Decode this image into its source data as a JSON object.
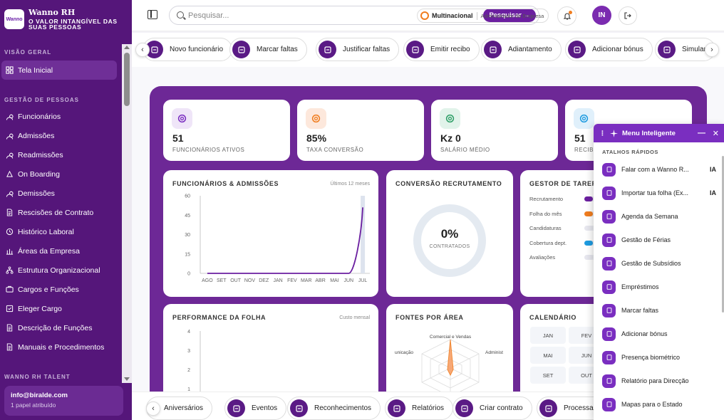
{
  "brand": {
    "name": "Wanno RH",
    "tagline": "O VALOR INTANGÍVEL DAS SUAS PESSOAS",
    "logo_text": "Wanno"
  },
  "sidebar": {
    "section_overview": "VISÃO GERAL",
    "home": "Tela Inicial",
    "section_people": "GESTÃO DE PESSOAS",
    "items": [
      "Funcionários",
      "Admissões",
      "Readmissões",
      "On Boarding",
      "Demissões",
      "Rescisões de Contrato",
      "Histórico Laboral",
      "Áreas da Empresa",
      "Estrutura Organizacional",
      "Cargos e Funções",
      "Eleger Cargo",
      "Descrição de Funções",
      "Manuais e Procedimentos"
    ],
    "section_talent": "WANNO RH TALENT",
    "user_email": "info@biralde.com",
    "user_role": "1 papel atribuído"
  },
  "topbar": {
    "search_placeholder": "Pesquisar...",
    "search_button": "Pesquisar →",
    "company": "Multinacional",
    "company_role": "Administrador da Empresa",
    "avatar_initials": "IN"
  },
  "shortcuts_top": [
    "Novo funcionário",
    "Marcar faltas",
    "Justificar faltas",
    "Emitir recibo",
    "Adiantamento",
    "Adicionar bónus",
    "Simular"
  ],
  "shortcuts_bottom": [
    "Aniversários",
    "Eventos",
    "Reconhecimentos",
    "Relatórios",
    "Criar contrato",
    "Processar"
  ],
  "kpis": [
    {
      "value": "51",
      "label": "FUNCIONÁRIOS ATIVOS",
      "color": "#efe5f8",
      "icon": "users-icon"
    },
    {
      "value": "85%",
      "label": "TAXA CONVERSÃO",
      "color": "#fde8dc",
      "icon": "target-icon"
    },
    {
      "value": "Kz 0",
      "label": "SALÁRIO MÉDIO",
      "color": "#e1f3ea",
      "icon": "money-icon"
    },
    {
      "value": "51",
      "label": "RECIBOS",
      "color": "#e0f0fb",
      "icon": "list-check-icon"
    }
  ],
  "cards": {
    "funcionarios_title": "FUNCIONÁRIOS & ADMISSÕES",
    "funcionarios_sub": "Últimos 12 meses",
    "conversao_title": "CONVERSÃO RECRUTAMENTO",
    "conversao_value": "0%",
    "conversao_label": "CONTRATADOS",
    "gestor_title": "GESTOR DE TAREFAS",
    "gestor_items": [
      {
        "label": "Recrutamento",
        "color": "#6b1fa0",
        "level": 0.5
      },
      {
        "label": "Folha do mês",
        "color": "#f07d1f",
        "level": 0.5
      },
      {
        "label": "Candidaturas",
        "color": "#e7e7ee",
        "level": 0.5
      },
      {
        "label": "Cobertura dept.",
        "color": "#1e9be0",
        "level": 0.5
      },
      {
        "label": "Avaliações",
        "color": "#e7e7ee",
        "level": 0.5
      }
    ],
    "performance_title": "PERFORMANCE DA FOLHA",
    "performance_sub": "Custo mensal",
    "fontes_title": "FONTES POR ÁREA",
    "fontes_labels": [
      "Comercial e Vendas",
      "Administ",
      "unicação"
    ],
    "calendario_title": "CALENDÁRIO",
    "calendar_months": [
      "JAN",
      "FEV",
      "MAI",
      "JUN",
      "SET",
      "OUT"
    ]
  },
  "chart_data": [
    {
      "type": "line",
      "title": "FUNCIONÁRIOS & ADMISSÕES",
      "categories": [
        "AGO",
        "SET",
        "OUT",
        "NOV",
        "DEZ",
        "JAN",
        "FEV",
        "MAR",
        "ABR",
        "MAI",
        "JUN",
        "JUL"
      ],
      "series": [
        {
          "values": [
            0,
            0,
            0,
            0,
            0,
            0,
            0,
            0,
            0,
            0,
            0,
            51
          ]
        }
      ],
      "ylim": [
        0,
        60
      ],
      "yticks": [
        0,
        15,
        30,
        45,
        60
      ]
    },
    {
      "type": "line",
      "title": "PERFORMANCE DA FOLHA",
      "yticks": [
        1,
        2,
        3,
        4
      ]
    }
  ],
  "smart_menu": {
    "title": "Menu Inteligente",
    "section": "ATALHOS RÁPIDOS",
    "items": [
      {
        "label": "Falar com a Wanno R...",
        "badge": "IA"
      },
      {
        "label": "Importar tua folha (Ex...",
        "badge": "IA"
      },
      {
        "label": "Agenda da Semana",
        "badge": ""
      },
      {
        "label": "Gestão de Férias",
        "badge": ""
      },
      {
        "label": "Gestão de Subsídios",
        "badge": ""
      },
      {
        "label": "Empréstimos",
        "badge": ""
      },
      {
        "label": "Marcar faltas",
        "badge": ""
      },
      {
        "label": "Adicionar bónus",
        "badge": ""
      },
      {
        "label": "Presença biométrico",
        "badge": ""
      },
      {
        "label": "Relatório para Direcção",
        "badge": ""
      },
      {
        "label": "Mapas para o Estado",
        "badge": ""
      }
    ]
  }
}
